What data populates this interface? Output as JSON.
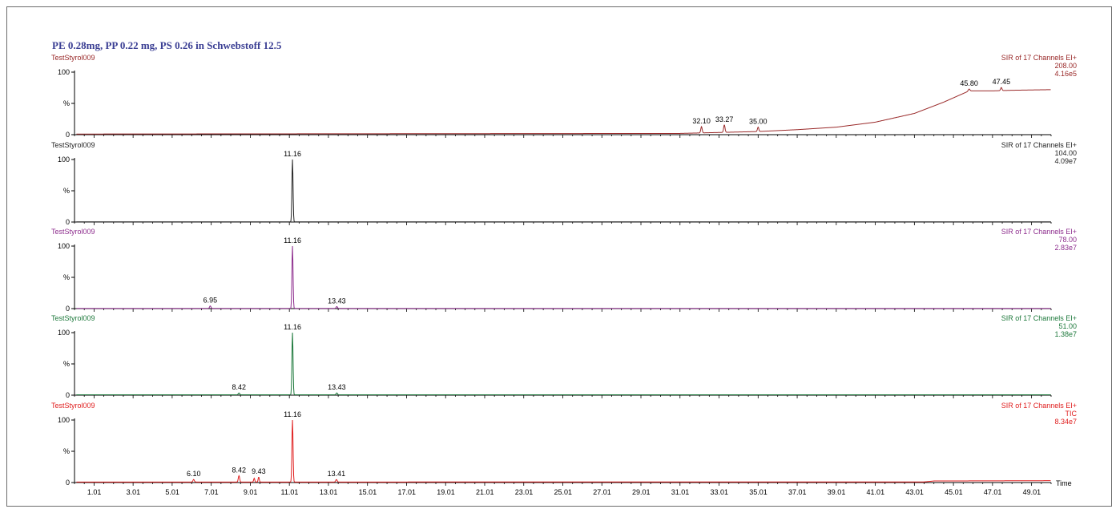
{
  "title": "PE 0.28mg, PP 0.22 mg, PS 0.26 in Schwebstoff 12.5",
  "title_color": "#3b3f94",
  "x_axis_label": "Time",
  "chart_data": [
    {
      "type": "line",
      "sample": "TestStyrol009",
      "color": "#9a2a2a",
      "right_labels": [
        "SIR of 17 Channels EI+",
        "208.00",
        "4.16e5"
      ],
      "ylabels": [
        "100",
        "%",
        "0"
      ],
      "ylim": [
        0,
        100
      ],
      "xlim": [
        0,
        50
      ],
      "peaks": [
        {
          "x": 32.1,
          "y": 10,
          "w": 0.05,
          "label": "32.10"
        },
        {
          "x": 33.27,
          "y": 12,
          "w": 0.05,
          "label": "33.27"
        },
        {
          "x": 35.0,
          "y": 7,
          "w": 0.05,
          "label": "35.00"
        },
        {
          "x": 45.8,
          "y": 3,
          "w": 0.06,
          "label": "45.80"
        },
        {
          "x": 47.45,
          "y": 5,
          "w": 0.05,
          "label": "47.45"
        }
      ],
      "baseline": [
        [
          0.1,
          1
        ],
        [
          31.0,
          2
        ],
        [
          35.0,
          5
        ],
        [
          37.0,
          8
        ],
        [
          39.0,
          12
        ],
        [
          41.0,
          20
        ],
        [
          43.0,
          34
        ],
        [
          44.5,
          52
        ],
        [
          45.8,
          70
        ],
        [
          47.0,
          70
        ],
        [
          48.0,
          71
        ],
        [
          50.0,
          72
        ]
      ]
    },
    {
      "type": "line",
      "sample": "TestStyrol009",
      "color": "#262626",
      "right_labels": [
        "SIR of 17 Channels EI+",
        "104.00",
        "4.09e7"
      ],
      "ylabels": [
        "100",
        "%",
        "0"
      ],
      "ylim": [
        0,
        100
      ],
      "xlim": [
        0,
        50
      ],
      "peaks": [
        {
          "x": 11.16,
          "y": 100,
          "w": 0.04,
          "label": "11.16"
        }
      ],
      "baseline": [
        [
          0.1,
          0.3
        ],
        [
          50.0,
          0.3
        ]
      ]
    },
    {
      "type": "line",
      "sample": "TestStyrol009",
      "color": "#8e2e8e",
      "right_labels": [
        "SIR of 17 Channels EI+",
        "78.00",
        "2.83e7"
      ],
      "ylabels": [
        "100",
        "%",
        "0"
      ],
      "ylim": [
        0,
        100
      ],
      "xlim": [
        0,
        50
      ],
      "peaks": [
        {
          "x": 6.95,
          "y": 4,
          "w": 0.05,
          "label": "6.95"
        },
        {
          "x": 11.16,
          "y": 100,
          "w": 0.04,
          "label": "11.16"
        },
        {
          "x": 13.43,
          "y": 3,
          "w": 0.05,
          "label": "13.43"
        }
      ],
      "baseline": [
        [
          0.1,
          0.3
        ],
        [
          50.0,
          0.3
        ]
      ]
    },
    {
      "type": "line",
      "sample": "TestStyrol009",
      "color": "#1f7a3d",
      "right_labels": [
        "SIR of 17 Channels EI+",
        "51.00",
        "1.38e7"
      ],
      "ylabels": [
        "100",
        "%",
        "0"
      ],
      "ylim": [
        0,
        100
      ],
      "xlim": [
        0,
        50
      ],
      "peaks": [
        {
          "x": 8.42,
          "y": 3,
          "w": 0.05,
          "label": "8.42"
        },
        {
          "x": 11.16,
          "y": 100,
          "w": 0.04,
          "label": "11.16"
        },
        {
          "x": 13.43,
          "y": 3,
          "w": 0.05,
          "label": "13.43"
        }
      ],
      "baseline": [
        [
          0.1,
          0.6
        ],
        [
          50.0,
          0.6
        ]
      ]
    },
    {
      "type": "line",
      "sample": "TestStyrol009",
      "color": "#e02020",
      "right_labels": [
        "SIR of 17 Channels EI+",
        "TIC",
        "8.34e7"
      ],
      "ylabels": [
        "100",
        "%",
        "0"
      ],
      "ylim": [
        0,
        100
      ],
      "xlim": [
        0,
        50
      ],
      "peaks": [
        {
          "x": 6.1,
          "y": 4,
          "w": 0.05,
          "label": "6.10"
        },
        {
          "x": 8.42,
          "y": 10,
          "w": 0.05,
          "label": "8.42"
        },
        {
          "x": 9.2,
          "y": 6,
          "w": 0.04,
          "label": ""
        },
        {
          "x": 9.43,
          "y": 8,
          "w": 0.04,
          "label": "9.43"
        },
        {
          "x": 11.16,
          "y": 100,
          "w": 0.04,
          "label": "11.16"
        },
        {
          "x": 13.41,
          "y": 4,
          "w": 0.05,
          "label": "13.41"
        }
      ],
      "baseline": [
        [
          0.1,
          0.8
        ],
        [
          43.5,
          1.0
        ],
        [
          44.0,
          2.5
        ],
        [
          50.0,
          3.0
        ]
      ]
    }
  ],
  "x_ticks": [
    "1.01",
    "3.01",
    "5.01",
    "7.01",
    "9.01",
    "11.01",
    "13.01",
    "15.01",
    "17.01",
    "19.01",
    "21.01",
    "23.01",
    "25.01",
    "27.01",
    "29.01",
    "31.01",
    "33.01",
    "35.01",
    "37.01",
    "39.01",
    "41.01",
    "43.01",
    "45.01",
    "47.01",
    "49.01"
  ]
}
